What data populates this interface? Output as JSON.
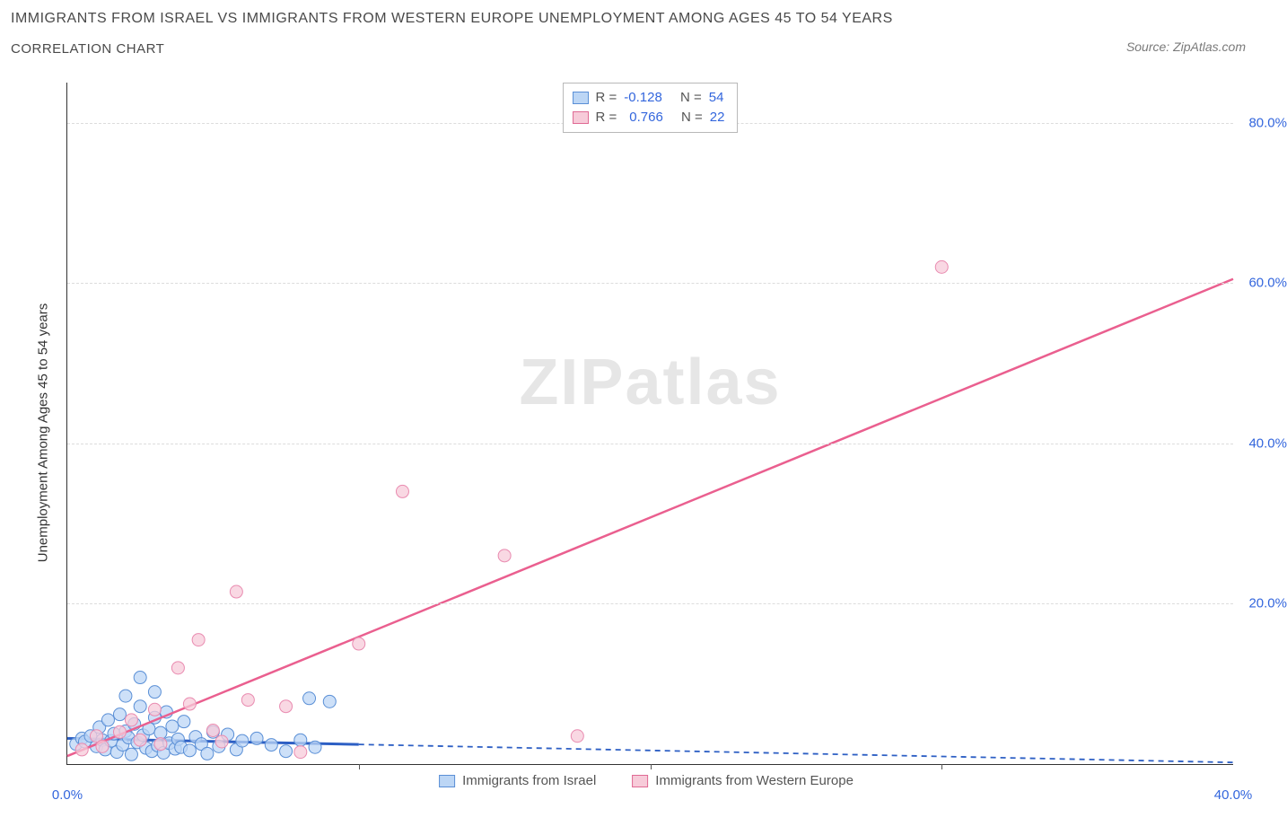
{
  "title": "IMMIGRANTS FROM ISRAEL VS IMMIGRANTS FROM WESTERN EUROPE UNEMPLOYMENT AMONG AGES 45 TO 54 YEARS",
  "subtitle": "CORRELATION CHART",
  "source_prefix": "Source: ",
  "source_name": "ZipAtlas.com",
  "y_axis_label": "Unemployment Among Ages 45 to 54 years",
  "watermark_bold": "ZIP",
  "watermark_rest": "atlas",
  "stats": {
    "series": [
      {
        "swatch_fill": "#bcd6f5",
        "swatch_border": "#5a8fd6",
        "r_label": "R =",
        "r_value": "-0.128",
        "n_label": "N =",
        "n_value": "54"
      },
      {
        "swatch_fill": "#f7cbd9",
        "swatch_border": "#e06a94",
        "r_label": "R =",
        "r_value": "0.766",
        "n_label": "N =",
        "n_value": "22"
      }
    ]
  },
  "legend": {
    "items": [
      {
        "swatch_fill": "#bcd6f5",
        "swatch_border": "#5a8fd6",
        "label": "Immigrants from Israel"
      },
      {
        "swatch_fill": "#f7cbd9",
        "swatch_border": "#e06a94",
        "label": "Immigrants from Western Europe"
      }
    ]
  },
  "chart": {
    "type": "scatter",
    "x_domain": [
      0,
      40
    ],
    "y_domain": [
      0,
      85
    ],
    "grid_color": "#dcdcdc",
    "background_color": "#ffffff",
    "axis_color": "#333333",
    "y_ticks": [
      20,
      40,
      60,
      80
    ],
    "y_tick_labels": [
      "20.0%",
      "40.0%",
      "60.0%",
      "80.0%"
    ],
    "x_ticks": [
      0,
      40
    ],
    "x_tick_labels": [
      "0.0%",
      "40.0%"
    ],
    "x_minor_ticks": [
      10,
      20,
      30
    ],
    "series": [
      {
        "name": "israel",
        "marker_fill": "#bcd6f5",
        "marker_stroke": "#5a8fd6",
        "marker_opacity": 0.75,
        "marker_radius": 7,
        "trend_color": "#2d5fc4",
        "trend_width": 3,
        "trend_solid_xmax": 10,
        "trend_dash": "6,5",
        "trend": {
          "x1": 0,
          "y1": 3.2,
          "x2": 40,
          "y2": 0.2
        },
        "points": [
          [
            0.3,
            2.5
          ],
          [
            0.5,
            3.2
          ],
          [
            0.6,
            2.8
          ],
          [
            0.8,
            3.5
          ],
          [
            1.0,
            2.2
          ],
          [
            1.1,
            4.6
          ],
          [
            1.2,
            3.0
          ],
          [
            1.3,
            1.8
          ],
          [
            1.4,
            5.5
          ],
          [
            1.5,
            2.9
          ],
          [
            1.6,
            3.8
          ],
          [
            1.7,
            1.5
          ],
          [
            1.8,
            6.2
          ],
          [
            1.9,
            2.4
          ],
          [
            2.0,
            4.1
          ],
          [
            2.0,
            8.5
          ],
          [
            2.1,
            3.3
          ],
          [
            2.2,
            1.2
          ],
          [
            2.3,
            5.0
          ],
          [
            2.4,
            2.7
          ],
          [
            2.5,
            7.2
          ],
          [
            2.5,
            10.8
          ],
          [
            2.6,
            3.6
          ],
          [
            2.7,
            2.0
          ],
          [
            2.8,
            4.4
          ],
          [
            2.9,
            1.6
          ],
          [
            3.0,
            5.8
          ],
          [
            3.0,
            9.0
          ],
          [
            3.1,
            2.3
          ],
          [
            3.2,
            3.9
          ],
          [
            3.3,
            1.4
          ],
          [
            3.4,
            6.5
          ],
          [
            3.5,
            2.6
          ],
          [
            3.6,
            4.7
          ],
          [
            3.7,
            1.9
          ],
          [
            3.8,
            3.1
          ],
          [
            3.9,
            2.1
          ],
          [
            4.0,
            5.3
          ],
          [
            4.2,
            1.7
          ],
          [
            4.4,
            3.4
          ],
          [
            4.6,
            2.5
          ],
          [
            4.8,
            1.3
          ],
          [
            5.0,
            4.0
          ],
          [
            5.2,
            2.2
          ],
          [
            5.5,
            3.7
          ],
          [
            5.8,
            1.8
          ],
          [
            6.0,
            2.9
          ],
          [
            6.5,
            3.2
          ],
          [
            7.0,
            2.4
          ],
          [
            7.5,
            1.6
          ],
          [
            8.0,
            3.0
          ],
          [
            8.3,
            8.2
          ],
          [
            8.5,
            2.1
          ],
          [
            9.0,
            7.8
          ]
        ]
      },
      {
        "name": "western_europe",
        "marker_fill": "#f7cbd9",
        "marker_stroke": "#e98bb0",
        "marker_opacity": 0.75,
        "marker_radius": 7,
        "trend_color": "#ea5f8f",
        "trend_width": 2.5,
        "trend_solid_xmax": 40,
        "trend_dash": "",
        "trend": {
          "x1": 0,
          "y1": 1.0,
          "x2": 40,
          "y2": 60.5
        },
        "points": [
          [
            0.5,
            1.8
          ],
          [
            1.0,
            3.5
          ],
          [
            1.2,
            2.2
          ],
          [
            1.8,
            4.0
          ],
          [
            2.2,
            5.5
          ],
          [
            2.5,
            3.0
          ],
          [
            3.0,
            6.8
          ],
          [
            3.2,
            2.5
          ],
          [
            3.8,
            12.0
          ],
          [
            4.2,
            7.5
          ],
          [
            4.5,
            15.5
          ],
          [
            5.0,
            4.2
          ],
          [
            5.3,
            2.8
          ],
          [
            5.8,
            21.5
          ],
          [
            6.2,
            8.0
          ],
          [
            7.5,
            7.2
          ],
          [
            8.0,
            1.5
          ],
          [
            10.0,
            15.0
          ],
          [
            11.5,
            34.0
          ],
          [
            15.0,
            26.0
          ],
          [
            17.5,
            3.5
          ],
          [
            30.0,
            62.0
          ]
        ]
      }
    ]
  }
}
